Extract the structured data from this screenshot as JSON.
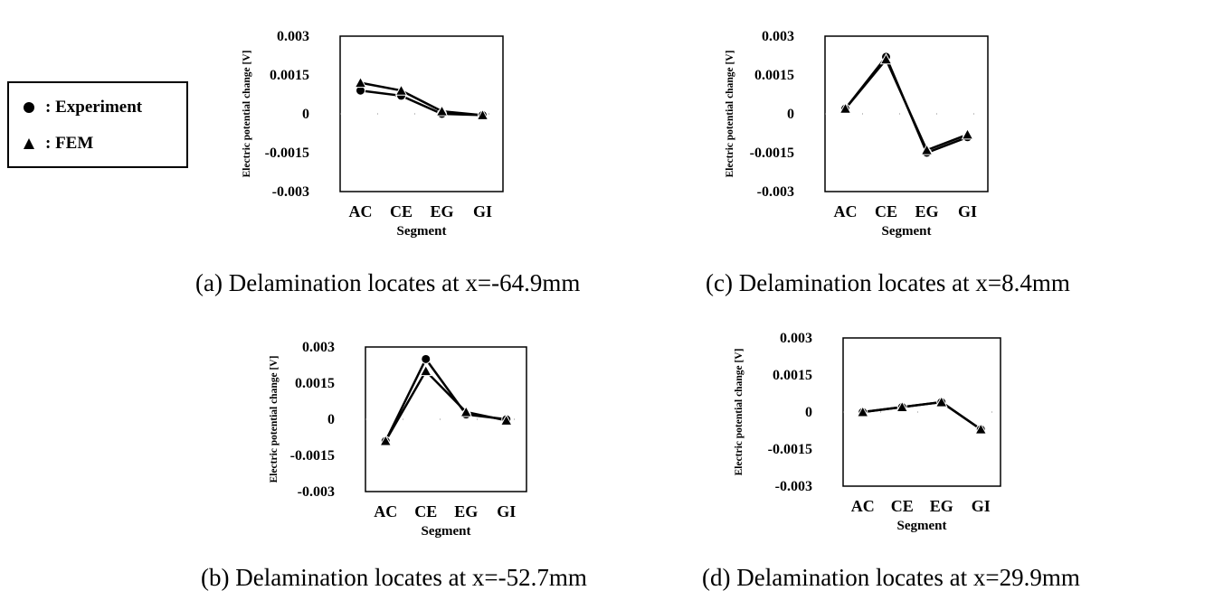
{
  "legend": {
    "items": [
      {
        "marker": "circle",
        "label": ": Experiment"
      },
      {
        "marker": "triangle",
        "label": ": FEM"
      }
    ]
  },
  "chart_data": [
    {
      "type": "line",
      "title": "(a) Delamination locates at x=-64.9mm",
      "xlabel": "Segment",
      "ylabel": "Electric potential change [V]",
      "categories": [
        "AC",
        "CE",
        "EG",
        "GI"
      ],
      "ylim": [
        -0.003,
        0.003
      ],
      "yticks": [
        "0.003",
        "0.0015",
        "0",
        "-0.0015",
        "-0.003"
      ],
      "series": [
        {
          "name": "Experiment",
          "marker": "circle",
          "values": [
            0.0009,
            0.0007,
            0.0,
            -5e-05
          ]
        },
        {
          "name": "FEM",
          "marker": "triangle",
          "values": [
            0.0012,
            0.0009,
            0.0001,
            -5e-05
          ]
        }
      ]
    },
    {
      "type": "line",
      "title": "(b) Delamination locates at x=-52.7mm",
      "xlabel": "Segment",
      "ylabel": "Electric potential change [V]",
      "categories": [
        "AC",
        "CE",
        "EG",
        "GI"
      ],
      "ylim": [
        -0.003,
        0.003
      ],
      "yticks": [
        "0.003",
        "0.0015",
        "0",
        "-0.0015",
        "-0.003"
      ],
      "series": [
        {
          "name": "Experiment",
          "marker": "circle",
          "values": [
            -0.0009,
            0.0025,
            0.0002,
            0.0
          ]
        },
        {
          "name": "FEM",
          "marker": "triangle",
          "values": [
            -0.0009,
            0.002,
            0.0003,
            -5e-05
          ]
        }
      ]
    },
    {
      "type": "line",
      "title": "(c) Delamination locates at x=8.4mm",
      "xlabel": "Segment",
      "ylabel": "Electric potential change [V]",
      "categories": [
        "AC",
        "CE",
        "EG",
        "GI"
      ],
      "ylim": [
        -0.003,
        0.003
      ],
      "yticks": [
        "0.003",
        "0.0015",
        "0",
        "-0.0015",
        "-0.003"
      ],
      "series": [
        {
          "name": "Experiment",
          "marker": "circle",
          "values": [
            0.0002,
            0.0022,
            -0.0015,
            -0.0009
          ]
        },
        {
          "name": "FEM",
          "marker": "triangle",
          "values": [
            0.0002,
            0.0021,
            -0.0014,
            -0.0008
          ]
        }
      ]
    },
    {
      "type": "line",
      "title": "(d) Delamination locates at x=29.9mm",
      "xlabel": "Segment",
      "ylabel": "Electric potential change [V]",
      "categories": [
        "AC",
        "CE",
        "EG",
        "GI"
      ],
      "ylim": [
        -0.003,
        0.003
      ],
      "yticks": [
        "0.003",
        "0.0015",
        "0",
        "-0.0015",
        "-0.003"
      ],
      "series": [
        {
          "name": "Experiment",
          "marker": "circle",
          "values": [
            0.0,
            0.0002,
            0.0004,
            -0.0007
          ]
        },
        {
          "name": "FEM",
          "marker": "triangle",
          "values": [
            0.0,
            0.0002,
            0.0004,
            -0.0007
          ]
        }
      ]
    }
  ]
}
